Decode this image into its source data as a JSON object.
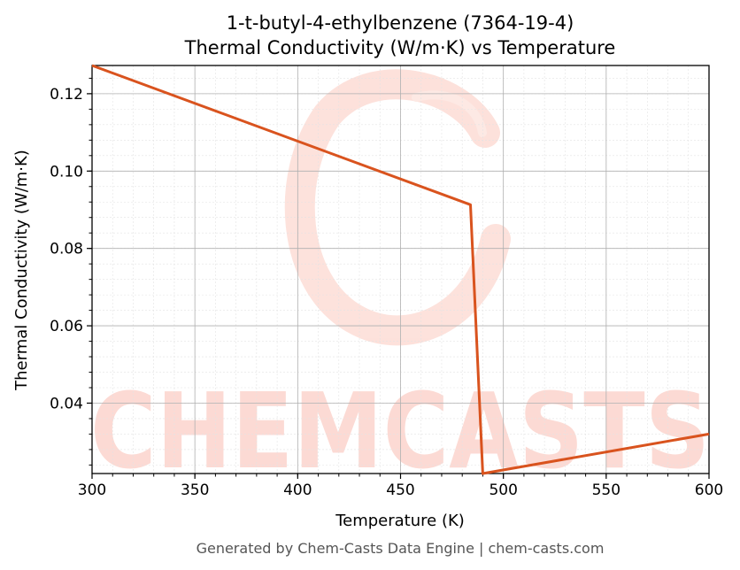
{
  "chart_data": {
    "type": "line",
    "title": "1-t-butyl-4-ethylbenzene (7364-19-4)",
    "subtitle": "Thermal Conductivity (W/m·K) vs Temperature",
    "xlabel": "Temperature (K)",
    "ylabel": "Thermal Conductivity (W/m·K)",
    "xlim": [
      300,
      600
    ],
    "ylim": [
      0.0218,
      0.1273
    ],
    "xticks": [
      300,
      350,
      400,
      450,
      500,
      550,
      600
    ],
    "yticks": [
      0.04,
      0.06,
      0.08,
      0.1,
      0.12
    ],
    "ytick_labels": [
      "0.04",
      "0.06",
      "0.08",
      "0.10",
      "0.12"
    ],
    "grid": true,
    "series": [
      {
        "color": "#d9531e",
        "x": [
          300,
          484,
          490,
          600
        ],
        "y": [
          0.1273,
          0.0913,
          0.0218,
          0.032
        ]
      }
    ]
  },
  "watermark": {
    "text": "CHEMCASTS",
    "color": "#fcd9d2"
  },
  "footer": "Generated by Chem-Casts Data Engine | chem-casts.com"
}
